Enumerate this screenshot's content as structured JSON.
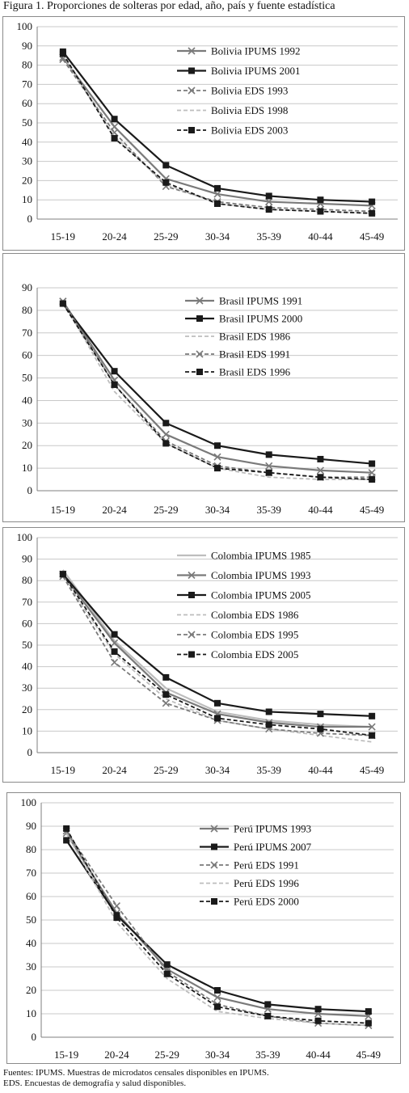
{
  "figure_title": "Figura 1. Proporciones de solteras por edad, año, país y fuente estadística",
  "footnote": {
    "line1": "Fuentes: IPUMS. Muestras de microdatos censales disponibles en IPUMS.",
    "line2": "EDS. Encuestas de demografía y salud disponibles."
  },
  "style_palette": {
    "dark": "#1a1a1a",
    "mid": "#7a7a7a",
    "light": "#bdbdbd",
    "grid": "#c8c8c8",
    "axis": "#7f7f7f"
  },
  "chart_data": [
    {
      "type": "line",
      "categories": [
        "15-19",
        "20-24",
        "25-29",
        "30-34",
        "35-39",
        "40-44",
        "45-49"
      ],
      "ylim": [
        0,
        100
      ],
      "yticks": [
        0,
        10,
        20,
        30,
        40,
        50,
        60,
        70,
        80,
        90,
        100
      ],
      "grid": true,
      "legend_position": "top-right",
      "series": [
        {
          "name": "Bolivia IPUMS 1992",
          "values": [
            84,
            48,
            21,
            13,
            9,
            8,
            7
          ],
          "color": "#7a7a7a",
          "dash": "solid",
          "marker": "x"
        },
        {
          "name": "Bolivia IPUMS 2001",
          "values": [
            87,
            52,
            28,
            16,
            12,
            10,
            9
          ],
          "color": "#1a1a1a",
          "dash": "solid",
          "marker": "square"
        },
        {
          "name": "Bolivia EDS 1993",
          "values": [
            83,
            45,
            17,
            9,
            6,
            5,
            4
          ],
          "color": "#7a7a7a",
          "dash": "dashed",
          "marker": "x"
        },
        {
          "name": "Bolivia EDS 1998",
          "values": [
            85,
            43,
            18,
            8,
            5,
            4,
            3
          ],
          "color": "#bdbdbd",
          "dash": "dashed",
          "marker": "none"
        },
        {
          "name": "Bolivia EDS 2003",
          "values": [
            86,
            42,
            19,
            8,
            5,
            4,
            3
          ],
          "color": "#1a1a1a",
          "dash": "dashed",
          "marker": "square"
        }
      ]
    },
    {
      "type": "line",
      "categories": [
        "15-19",
        "20-24",
        "25-29",
        "30-34",
        "35-39",
        "40-44",
        "45-49"
      ],
      "ylim": [
        0,
        90
      ],
      "yticks": [
        0,
        10,
        20,
        30,
        40,
        50,
        60,
        70,
        80,
        90
      ],
      "grid": true,
      "legend_position": "top-right",
      "series": [
        {
          "name": "Brasil IPUMS 1991",
          "values": [
            84,
            49,
            25,
            15,
            11,
            9,
            8
          ],
          "color": "#7a7a7a",
          "dash": "solid",
          "marker": "x"
        },
        {
          "name": "Brasil IPUMS 2000",
          "values": [
            83,
            53,
            30,
            20,
            16,
            14,
            12
          ],
          "color": "#1a1a1a",
          "dash": "solid",
          "marker": "square"
        },
        {
          "name": "Brasil EDS 1986",
          "values": [
            84,
            44,
            21,
            10,
            6,
            5,
            5
          ],
          "color": "#bdbdbd",
          "dash": "dashed",
          "marker": "none"
        },
        {
          "name": "Brasil EDS 1991",
          "values": [
            84,
            47,
            22,
            11,
            8,
            6,
            6
          ],
          "color": "#7a7a7a",
          "dash": "dashed",
          "marker": "x"
        },
        {
          "name": "Brasil EDS 1996",
          "values": [
            83,
            47,
            21,
            10,
            8,
            6,
            5
          ],
          "color": "#1a1a1a",
          "dash": "dashed",
          "marker": "square"
        }
      ]
    },
    {
      "type": "line",
      "categories": [
        "15-19",
        "20-24",
        "25-29",
        "30-34",
        "35-39",
        "40-44",
        "45-49"
      ],
      "ylim": [
        0,
        100
      ],
      "yticks": [
        0,
        10,
        20,
        30,
        40,
        50,
        60,
        70,
        80,
        90,
        100
      ],
      "grid": true,
      "legend_position": "top-right",
      "series": [
        {
          "name": "Colombia IPUMS 1985",
          "values": [
            85,
            52,
            30,
            19,
            15,
            13,
            12
          ],
          "color": "#bdbdbd",
          "dash": "solid",
          "marker": "none"
        },
        {
          "name": "Colombia IPUMS 1993",
          "values": [
            83,
            51,
            28,
            18,
            14,
            12,
            12
          ],
          "color": "#7a7a7a",
          "dash": "solid",
          "marker": "x"
        },
        {
          "name": "Colombia IPUMS 2005",
          "values": [
            83,
            55,
            35,
            23,
            19,
            18,
            17
          ],
          "color": "#1a1a1a",
          "dash": "solid",
          "marker": "square"
        },
        {
          "name": "Colombia EDS 1986",
          "values": [
            82,
            46,
            25,
            15,
            11,
            8,
            5
          ],
          "color": "#bdbdbd",
          "dash": "dashed",
          "marker": "none"
        },
        {
          "name": "Colombia EDS 1995",
          "values": [
            82,
            42,
            23,
            15,
            11,
            9,
            8
          ],
          "color": "#7a7a7a",
          "dash": "dashed",
          "marker": "x"
        },
        {
          "name": "Colombia EDS 2005",
          "values": [
            83,
            47,
            27,
            16,
            13,
            11,
            8
          ],
          "color": "#1a1a1a",
          "dash": "dashed",
          "marker": "square"
        }
      ]
    },
    {
      "type": "line",
      "categories": [
        "15-19",
        "20-24",
        "25-29",
        "30-34",
        "35-39",
        "40-44",
        "45-49"
      ],
      "ylim": [
        0,
        100
      ],
      "yticks": [
        0,
        10,
        20,
        30,
        40,
        50,
        60,
        70,
        80,
        90,
        100
      ],
      "grid": true,
      "legend_position": "top-right",
      "series": [
        {
          "name": "Perú IPUMS 1993",
          "values": [
            87,
            53,
            29,
            17,
            12,
            10,
            9
          ],
          "color": "#7a7a7a",
          "dash": "solid",
          "marker": "x"
        },
        {
          "name": "Perú IPUMS 2007",
          "values": [
            84,
            52,
            31,
            20,
            14,
            12,
            11
          ],
          "color": "#1a1a1a",
          "dash": "solid",
          "marker": "square"
        },
        {
          "name": "Perú EDS 1991",
          "values": [
            88,
            56,
            28,
            14,
            9,
            6,
            5
          ],
          "color": "#7a7a7a",
          "dash": "dashed",
          "marker": "x"
        },
        {
          "name": "Perú EDS 1996",
          "values": [
            87,
            49,
            25,
            11,
            8,
            6,
            5
          ],
          "color": "#bdbdbd",
          "dash": "dashed",
          "marker": "none"
        },
        {
          "name": "Perú EDS 2000",
          "values": [
            89,
            51,
            27,
            13,
            9,
            7,
            6
          ],
          "color": "#1a1a1a",
          "dash": "dashed",
          "marker": "square"
        }
      ]
    }
  ]
}
